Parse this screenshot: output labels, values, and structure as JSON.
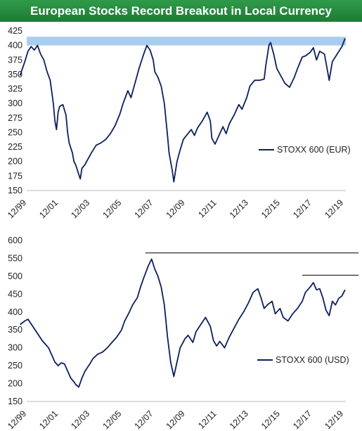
{
  "title": "European Stocks Record Breakout in Local Currency",
  "colors": {
    "title_bg": "#248a3d",
    "series": "#0d1f5c",
    "band": "#a9cdee",
    "resistance": "#000000"
  },
  "chart_data": [
    {
      "type": "line",
      "series": [
        {
          "name": "STOXX 600 (EUR)"
        }
      ],
      "x_tick_labels": [
        "12/99",
        "12/01",
        "12/03",
        "12/05",
        "12/07",
        "12/09",
        "12/11",
        "12/13",
        "12/15",
        "12/17",
        "12/19"
      ],
      "ylim": [
        150,
        425
      ],
      "y_ticks": [
        150,
        175,
        200,
        225,
        250,
        275,
        300,
        325,
        350,
        375,
        400,
        425
      ],
      "highlight_band": [
        400,
        415
      ],
      "points": [
        [
          1999.5,
          348
        ],
        [
          1999.8,
          372
        ],
        [
          2000.0,
          390
        ],
        [
          2000.2,
          398
        ],
        [
          2000.4,
          392
        ],
        [
          2000.6,
          400
        ],
        [
          2000.8,
          385
        ],
        [
          2001.0,
          375
        ],
        [
          2001.2,
          355
        ],
        [
          2001.4,
          340
        ],
        [
          2001.6,
          300
        ],
        [
          2001.7,
          270
        ],
        [
          2001.8,
          255
        ],
        [
          2001.9,
          285
        ],
        [
          2002.0,
          295
        ],
        [
          2002.2,
          298
        ],
        [
          2002.4,
          280
        ],
        [
          2002.5,
          250
        ],
        [
          2002.6,
          232
        ],
        [
          2002.8,
          215
        ],
        [
          2002.9,
          200
        ],
        [
          2003.0,
          195
        ],
        [
          2003.2,
          178
        ],
        [
          2003.3,
          170
        ],
        [
          2003.4,
          188
        ],
        [
          2003.6,
          195
        ],
        [
          2003.8,
          205
        ],
        [
          2004.0,
          215
        ],
        [
          2004.3,
          228
        ],
        [
          2004.6,
          232
        ],
        [
          2004.9,
          238
        ],
        [
          2005.2,
          248
        ],
        [
          2005.5,
          262
        ],
        [
          2005.8,
          282
        ],
        [
          2006.0,
          300
        ],
        [
          2006.3,
          322
        ],
        [
          2006.5,
          310
        ],
        [
          2006.7,
          330
        ],
        [
          2007.0,
          360
        ],
        [
          2007.3,
          385
        ],
        [
          2007.5,
          400
        ],
        [
          2007.7,
          392
        ],
        [
          2007.9,
          375
        ],
        [
          2008.0,
          355
        ],
        [
          2008.2,
          345
        ],
        [
          2008.4,
          330
        ],
        [
          2008.6,
          300
        ],
        [
          2008.8,
          245
        ],
        [
          2008.9,
          215
        ],
        [
          2009.1,
          185
        ],
        [
          2009.2,
          165
        ],
        [
          2009.4,
          200
        ],
        [
          2009.6,
          220
        ],
        [
          2009.8,
          238
        ],
        [
          2010.0,
          245
        ],
        [
          2010.3,
          255
        ],
        [
          2010.5,
          245
        ],
        [
          2010.7,
          258
        ],
        [
          2011.0,
          270
        ],
        [
          2011.3,
          285
        ],
        [
          2011.5,
          270
        ],
        [
          2011.6,
          240
        ],
        [
          2011.8,
          230
        ],
        [
          2012.0,
          242
        ],
        [
          2012.3,
          260
        ],
        [
          2012.5,
          248
        ],
        [
          2012.7,
          265
        ],
        [
          2013.0,
          280
        ],
        [
          2013.3,
          298
        ],
        [
          2013.5,
          290
        ],
        [
          2013.8,
          310
        ],
        [
          2014.0,
          330
        ],
        [
          2014.3,
          340
        ],
        [
          2014.6,
          340
        ],
        [
          2014.9,
          342
        ],
        [
          2015.0,
          365
        ],
        [
          2015.2,
          400
        ],
        [
          2015.3,
          405
        ],
        [
          2015.5,
          385
        ],
        [
          2015.7,
          360
        ],
        [
          2016.0,
          345
        ],
        [
          2016.2,
          335
        ],
        [
          2016.5,
          328
        ],
        [
          2016.8,
          345
        ],
        [
          2017.0,
          360
        ],
        [
          2017.3,
          380
        ],
        [
          2017.5,
          382
        ],
        [
          2017.8,
          388
        ],
        [
          2018.0,
          396
        ],
        [
          2018.2,
          375
        ],
        [
          2018.4,
          390
        ],
        [
          2018.7,
          385
        ],
        [
          2018.9,
          355
        ],
        [
          2019.0,
          340
        ],
        [
          2019.2,
          372
        ],
        [
          2019.5,
          385
        ],
        [
          2019.8,
          398
        ],
        [
          2020.0,
          412
        ]
      ]
    },
    {
      "type": "line",
      "series": [
        {
          "name": "STOXX 600 (USD)"
        }
      ],
      "x_tick_labels": [
        "12/99",
        "12/01",
        "12/03",
        "12/05",
        "12/07",
        "12/09",
        "12/11",
        "12/13",
        "12/15",
        "12/17",
        "12/19"
      ],
      "ylim": [
        150,
        600
      ],
      "y_ticks": [
        150,
        200,
        250,
        300,
        350,
        400,
        450,
        500,
        550,
        600
      ],
      "resistance_levels": [
        565,
        503
      ],
      "points": [
        [
          1999.5,
          365
        ],
        [
          1999.8,
          375
        ],
        [
          2000.0,
          380
        ],
        [
          2000.3,
          360
        ],
        [
          2000.6,
          340
        ],
        [
          2000.9,
          320
        ],
        [
          2001.1,
          310
        ],
        [
          2001.3,
          300
        ],
        [
          2001.5,
          280
        ],
        [
          2001.7,
          260
        ],
        [
          2001.9,
          250
        ],
        [
          2002.1,
          258
        ],
        [
          2002.3,
          255
        ],
        [
          2002.5,
          235
        ],
        [
          2002.7,
          215
        ],
        [
          2002.9,
          205
        ],
        [
          2003.0,
          198
        ],
        [
          2003.2,
          190
        ],
        [
          2003.4,
          215
        ],
        [
          2003.6,
          235
        ],
        [
          2003.9,
          255
        ],
        [
          2004.1,
          270
        ],
        [
          2004.4,
          282
        ],
        [
          2004.7,
          288
        ],
        [
          2005.0,
          300
        ],
        [
          2005.3,
          315
        ],
        [
          2005.6,
          330
        ],
        [
          2005.9,
          350
        ],
        [
          2006.1,
          375
        ],
        [
          2006.4,
          400
        ],
        [
          2006.6,
          420
        ],
        [
          2006.9,
          440
        ],
        [
          2007.1,
          470
        ],
        [
          2007.3,
          495
        ],
        [
          2007.6,
          530
        ],
        [
          2007.8,
          548
        ],
        [
          2008.0,
          520
        ],
        [
          2008.2,
          500
        ],
        [
          2008.4,
          470
        ],
        [
          2008.6,
          420
        ],
        [
          2008.8,
          330
        ],
        [
          2009.0,
          260
        ],
        [
          2009.2,
          220
        ],
        [
          2009.4,
          260
        ],
        [
          2009.6,
          300
        ],
        [
          2009.9,
          325
        ],
        [
          2010.1,
          335
        ],
        [
          2010.4,
          315
        ],
        [
          2010.6,
          345
        ],
        [
          2010.9,
          365
        ],
        [
          2011.2,
          385
        ],
        [
          2011.5,
          360
        ],
        [
          2011.7,
          320
        ],
        [
          2011.9,
          305
        ],
        [
          2012.1,
          318
        ],
        [
          2012.4,
          300
        ],
        [
          2012.7,
          330
        ],
        [
          2013.0,
          355
        ],
        [
          2013.3,
          380
        ],
        [
          2013.6,
          400
        ],
        [
          2013.9,
          425
        ],
        [
          2014.2,
          455
        ],
        [
          2014.5,
          465
        ],
        [
          2014.7,
          440
        ],
        [
          2014.9,
          410
        ],
        [
          2015.1,
          420
        ],
        [
          2015.4,
          430
        ],
        [
          2015.6,
          395
        ],
        [
          2015.9,
          410
        ],
        [
          2016.1,
          385
        ],
        [
          2016.4,
          375
        ],
        [
          2016.7,
          395
        ],
        [
          2017.0,
          410
        ],
        [
          2017.3,
          430
        ],
        [
          2017.5,
          455
        ],
        [
          2017.8,
          470
        ],
        [
          2018.0,
          482
        ],
        [
          2018.2,
          462
        ],
        [
          2018.4,
          465
        ],
        [
          2018.6,
          440
        ],
        [
          2018.8,
          405
        ],
        [
          2019.0,
          390
        ],
        [
          2019.2,
          430
        ],
        [
          2019.4,
          420
        ],
        [
          2019.6,
          438
        ],
        [
          2019.8,
          445
        ],
        [
          2020.0,
          462
        ]
      ]
    }
  ]
}
